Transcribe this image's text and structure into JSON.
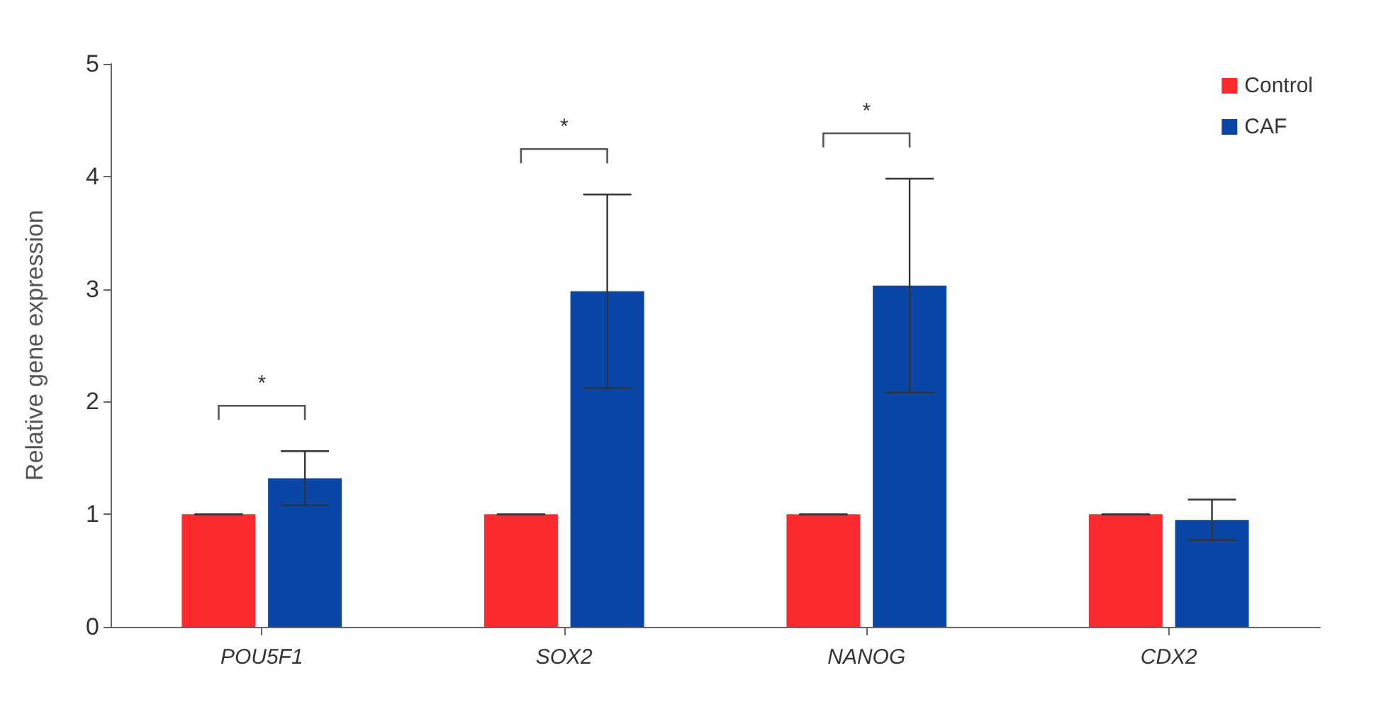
{
  "chart_data": {
    "type": "bar",
    "ylabel": "Relative gene expression",
    "categories": [
      "POU5F1",
      "SOX2",
      "NANOG",
      "CDX2"
    ],
    "series": [
      {
        "name": "Control",
        "color": "#fa2a2f",
        "values": [
          1,
          1,
          1,
          1
        ],
        "errors": [
          0,
          0,
          0,
          0
        ]
      },
      {
        "name": "CAF",
        "color": "#0a46a5",
        "values": [
          1.32,
          2.98,
          3.03,
          0.95
        ],
        "errors": [
          0.24,
          0.86,
          0.95,
          0.18
        ]
      }
    ],
    "ylim": [
      0,
      5
    ],
    "yticks": [
      0,
      1,
      2,
      3,
      4,
      5
    ],
    "grid": false,
    "legend": "top right",
    "annotations": [
      "*",
      "*",
      "*"
    ]
  }
}
